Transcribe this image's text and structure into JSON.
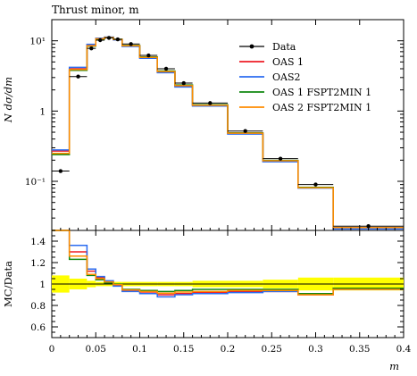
{
  "chart_data": {
    "type": "line",
    "title": "Thrust minor, m",
    "xlabel": "m",
    "xlim": [
      0,
      0.4
    ],
    "x_ticks": [
      "0",
      "0.05",
      "0.1",
      "0.15",
      "0.2",
      "0.25",
      "0.3",
      "0.35",
      "0.4"
    ],
    "x_tick_values": [
      0,
      0.05,
      0.1,
      0.15,
      0.2,
      0.25,
      0.3,
      0.35,
      0.4
    ],
    "main": {
      "ylabel": "N dσ/dm",
      "yscale": "log",
      "ylim": [
        0.02,
        20
      ],
      "y_ticks": [
        "10⁻¹",
        "1",
        "10¹"
      ],
      "y_tick_values": [
        0.1,
        1,
        10
      ]
    },
    "ratio": {
      "ylabel": "MC/Data",
      "ylim": [
        0.5,
        1.5
      ],
      "y_ticks": [
        "0.6",
        "0.8",
        "1",
        "1.2",
        "1.4"
      ],
      "y_tick_values": [
        0.6,
        0.8,
        1.0,
        1.2,
        1.4
      ]
    },
    "bin_edges": [
      0,
      0.02,
      0.04,
      0.05,
      0.06,
      0.07,
      0.08,
      0.1,
      0.12,
      0.14,
      0.16,
      0.2,
      0.24,
      0.28,
      0.32,
      0.4
    ],
    "data": {
      "name": "Data",
      "color": "#000000",
      "values": [
        0.14,
        3.1,
        7.8,
        10.2,
        11.0,
        10.5,
        9.0,
        6.2,
        4.0,
        2.5,
        1.3,
        0.52,
        0.21,
        0.09,
        0.023
      ]
    },
    "band": {
      "color": "#ffff00",
      "lo": [
        0.92,
        0.95,
        0.97,
        0.98,
        0.98,
        0.98,
        0.98,
        0.98,
        0.98,
        0.98,
        0.97,
        0.97,
        0.96,
        0.94,
        0.94
      ],
      "hi": [
        1.08,
        1.05,
        1.03,
        1.02,
        1.02,
        1.02,
        1.02,
        1.02,
        1.02,
        1.02,
        1.03,
        1.03,
        1.04,
        1.06,
        1.06
      ]
    },
    "series": [
      {
        "name": "OAS 1",
        "color": "#ee1c25",
        "values": [
          0.27,
          4.0,
          8.7,
          10.8,
          11.2,
          10.4,
          8.4,
          5.75,
          3.6,
          2.27,
          1.2,
          0.48,
          0.195,
          0.081,
          0.022
        ],
        "ratio": [
          1.95,
          1.3,
          1.12,
          1.06,
          1.02,
          0.99,
          0.94,
          0.925,
          0.9,
          0.91,
          0.92,
          0.93,
          0.93,
          0.9,
          0.96
        ]
      },
      {
        "name": "OAS2",
        "color": "#2b6cf0",
        "values": [
          0.28,
          4.2,
          8.9,
          10.9,
          11.3,
          10.3,
          8.3,
          5.65,
          3.52,
          2.2,
          1.18,
          0.47,
          0.19,
          0.08,
          0.021
        ],
        "ratio": [
          2.0,
          1.36,
          1.14,
          1.07,
          1.03,
          0.98,
          0.93,
          0.91,
          0.88,
          0.9,
          0.91,
          0.92,
          0.93,
          0.91,
          0.95
        ]
      },
      {
        "name": "OAS 1 FSPT2MIN 1",
        "color": "#118811",
        "values": [
          0.24,
          3.8,
          8.4,
          10.6,
          11.1,
          10.5,
          8.6,
          5.9,
          3.72,
          2.35,
          1.23,
          0.49,
          0.198,
          0.082,
          0.022
        ],
        "ratio": [
          1.7,
          1.23,
          1.08,
          1.04,
          1.01,
          1.0,
          0.95,
          0.94,
          0.93,
          0.94,
          0.95,
          0.95,
          0.95,
          0.91,
          0.96
        ]
      },
      {
        "name": "OAS 2 FSPT2MIN 1",
        "color": "#ff8c00",
        "values": [
          0.25,
          3.9,
          8.5,
          10.7,
          11.15,
          10.45,
          8.5,
          5.8,
          3.65,
          2.3,
          1.21,
          0.485,
          0.196,
          0.081,
          0.022
        ],
        "ratio": [
          1.8,
          1.26,
          1.09,
          1.05,
          1.02,
          0.995,
          0.945,
          0.93,
          0.915,
          0.925,
          0.93,
          0.94,
          0.94,
          0.9,
          0.95
        ]
      }
    ],
    "legend_placement": "top-right"
  }
}
